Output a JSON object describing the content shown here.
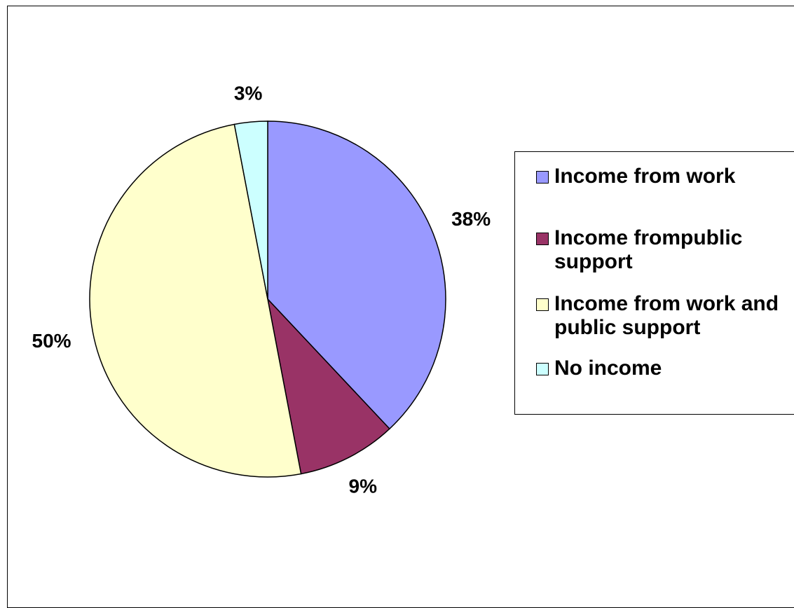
{
  "chart_data": {
    "type": "pie",
    "title": "",
    "categories": [
      "Income from work",
      "Income frompublic support",
      "Income from work and public support",
      "No income"
    ],
    "values": [
      38,
      9,
      50,
      3
    ],
    "labels": [
      "38%",
      "9%",
      "50%",
      "3%"
    ],
    "colors": [
      "#9999ff",
      "#993366",
      "#ffffcc",
      "#ccffff"
    ],
    "legend_placement": "right"
  }
}
